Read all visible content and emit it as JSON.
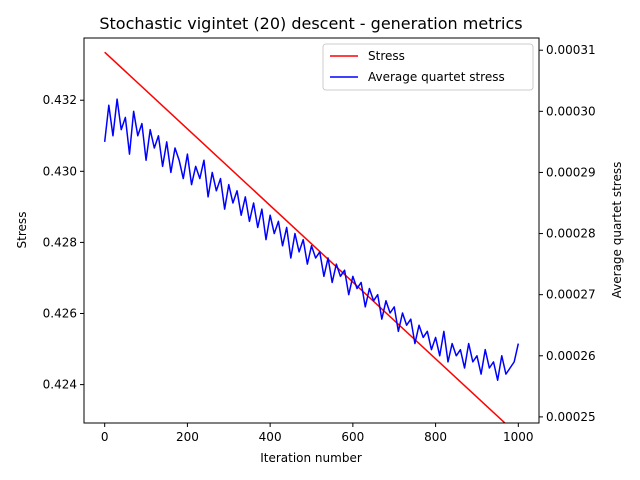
{
  "chart_data": {
    "type": "line",
    "title": "Stochastic vigintet (20) descent - generation metrics",
    "xlabel": "Iteration number",
    "ylabel_left": "Stress",
    "ylabel_right": "Average quartet stress",
    "xlim": [
      -50,
      1050
    ],
    "ylim_left": [
      0.42292,
      0.43375
    ],
    "ylim_right": [
      0.000249,
      0.000312
    ],
    "x_ticks": [
      0,
      200,
      400,
      600,
      800,
      1000
    ],
    "x_tick_labels": [
      "0",
      "200",
      "400",
      "600",
      "800",
      "1000"
    ],
    "y_left_ticks": [
      0.424,
      0.426,
      0.428,
      0.43,
      0.432
    ],
    "y_left_tick_labels": [
      "0.424",
      "0.426",
      "0.428",
      "0.430",
      "0.432"
    ],
    "y_right_ticks": [
      0.00025,
      0.00026,
      0.00027,
      0.00028,
      0.00029,
      0.0003,
      0.00031
    ],
    "y_right_tick_labels": [
      "0.00025",
      "0.00026",
      "0.00027",
      "0.00028",
      "0.00029",
      "0.00030",
      "0.00031"
    ],
    "legend_position": "top-right",
    "grid": false,
    "series": [
      {
        "name": "Stress",
        "axis": "left",
        "color": "#ff0000",
        "x": [
          0,
          1000
        ],
        "values": [
          0.43335,
          0.42257
        ]
      },
      {
        "name": "Average quartet stress",
        "axis": "right",
        "color": "#0000ff",
        "x": [
          0,
          10,
          20,
          30,
          40,
          50,
          60,
          70,
          80,
          90,
          100,
          110,
          120,
          130,
          140,
          150,
          160,
          170,
          180,
          190,
          200,
          210,
          220,
          230,
          240,
          250,
          260,
          270,
          280,
          290,
          300,
          310,
          320,
          330,
          340,
          350,
          360,
          370,
          380,
          390,
          400,
          410,
          420,
          430,
          440,
          450,
          460,
          470,
          480,
          490,
          500,
          510,
          520,
          530,
          540,
          550,
          560,
          570,
          580,
          590,
          600,
          610,
          620,
          630,
          640,
          650,
          660,
          670,
          680,
          690,
          700,
          710,
          720,
          730,
          740,
          750,
          760,
          770,
          780,
          790,
          800,
          810,
          820,
          830,
          840,
          850,
          860,
          870,
          880,
          890,
          900,
          910,
          920,
          930,
          940,
          950,
          960,
          970,
          980,
          990,
          1000
        ],
        "values": [
          0.000295,
          0.000301,
          0.000296,
          0.000302,
          0.000297,
          0.000299,
          0.000293,
          0.0003,
          0.000296,
          0.000298,
          0.000292,
          0.000297,
          0.000294,
          0.000296,
          0.000291,
          0.000295,
          0.00029,
          0.000294,
          0.000292,
          0.000289,
          0.000293,
          0.000288,
          0.000291,
          0.000289,
          0.000292,
          0.000286,
          0.00029,
          0.000287,
          0.000289,
          0.000284,
          0.000288,
          0.000285,
          0.000287,
          0.000283,
          0.000286,
          0.000282,
          0.000285,
          0.000281,
          0.000284,
          0.000279,
          0.000283,
          0.00028,
          0.000282,
          0.000278,
          0.000281,
          0.000276,
          0.00028,
          0.000277,
          0.000279,
          0.000275,
          0.000278,
          0.000276,
          0.000277,
          0.000273,
          0.000276,
          0.000272,
          0.000275,
          0.000273,
          0.000274,
          0.00027,
          0.000273,
          0.000271,
          0.000272,
          0.000268,
          0.000271,
          0.000269,
          0.00027,
          0.000266,
          0.000269,
          0.000267,
          0.000268,
          0.000264,
          0.000267,
          0.000265,
          0.000266,
          0.000262,
          0.000265,
          0.000263,
          0.000264,
          0.000261,
          0.000263,
          0.00026,
          0.000264,
          0.000259,
          0.000262,
          0.00026,
          0.000261,
          0.000258,
          0.000262,
          0.000259,
          0.00026,
          0.000257,
          0.000261,
          0.000258,
          0.000259,
          0.000256,
          0.00026,
          0.000257,
          0.000258,
          0.000259,
          0.000262
        ]
      }
    ]
  }
}
